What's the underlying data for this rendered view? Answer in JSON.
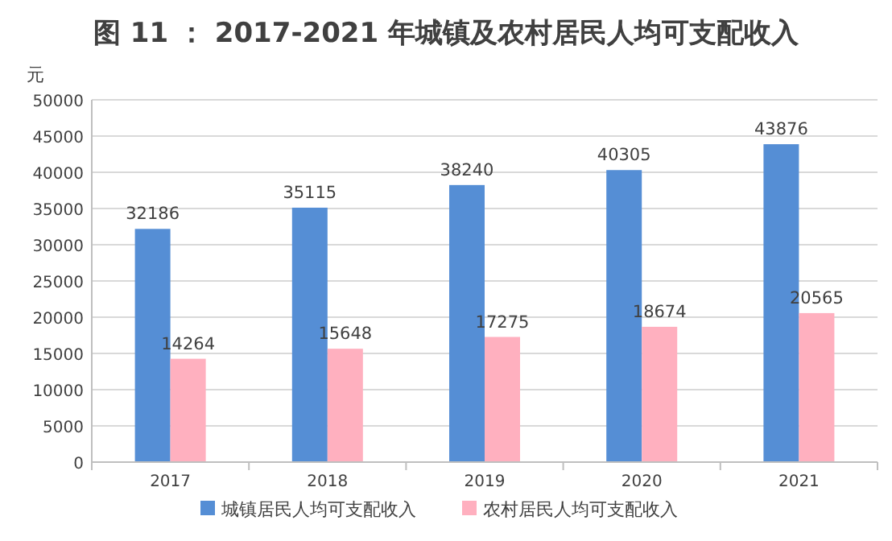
{
  "chart_data": {
    "type": "bar",
    "title": "图 11 ： 2017-2021 年城镇及农村居民人均可支配收入",
    "ylabel": "元",
    "categories": [
      "2017",
      "2018",
      "2019",
      "2020",
      "2021"
    ],
    "series": [
      {
        "name": "城镇居民人均可支配收入",
        "color": "#558ed5",
        "values": [
          32186,
          35115,
          38240,
          40305,
          43876
        ]
      },
      {
        "name": "农村居民人均可支配收入",
        "color": "#ffb0bf",
        "values": [
          14264,
          15648,
          17275,
          18674,
          20565
        ]
      }
    ],
    "ylim": [
      0,
      50000
    ],
    "yticks": [
      0,
      5000,
      10000,
      15000,
      20000,
      25000,
      30000,
      35000,
      40000,
      45000,
      50000
    ],
    "grid": "y",
    "legend": "bottom",
    "data_labels": true
  }
}
